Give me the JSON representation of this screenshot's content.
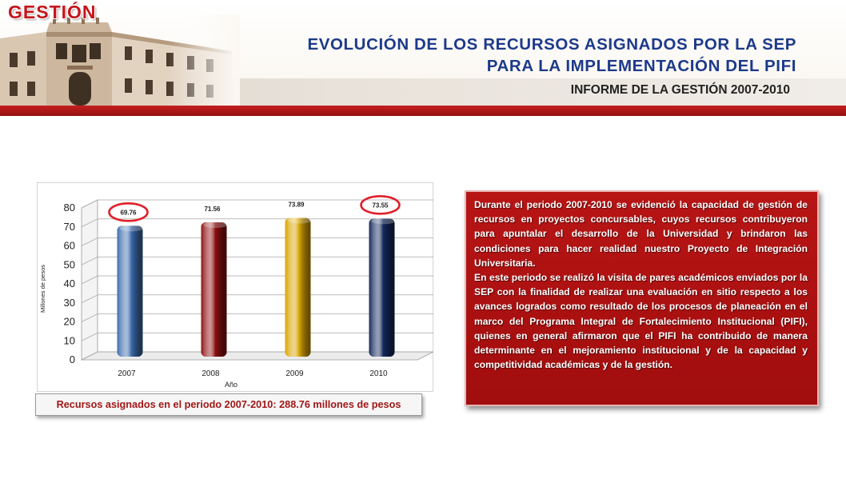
{
  "header": {
    "section": "GESTIÓN",
    "title_line1": "EVOLUCIÓN DE LOS RECURSOS ASIGNADOS POR LA SEP",
    "title_line2": "PARA LA IMPLEMENTACIÓN DEL PIFI",
    "subtitle": "INFORME DE LA GESTIÓN 2007-2010"
  },
  "chart_data": {
    "type": "bar",
    "categories": [
      "2007",
      "2008",
      "2009",
      "2010"
    ],
    "values": [
      69.76,
      71.56,
      73.89,
      73.55
    ],
    "value_labels": [
      "69.76",
      "71.56",
      "73.89",
      "73.55"
    ],
    "colors": [
      "#3d6cae",
      "#8e1010",
      "#d7a400",
      "#142a5c"
    ],
    "highlighted": [
      "2007",
      "2010"
    ],
    "highlight_color": "#e0202a",
    "xlabel": "Año",
    "ylabel": "Millones de pesos",
    "ylim": [
      0,
      80
    ],
    "yticks": [
      0,
      10,
      20,
      30,
      40,
      50,
      60,
      70,
      80
    ],
    "grid": true,
    "legend": "none"
  },
  "caption": "Recursos asignados en el periodo 2007-2010: 288.76 millones de pesos",
  "description": {
    "paragraph1": "Durante el periodo 2007-2010 se evidenció la capacidad de gestión de recursos en proyectos concursables, cuyos recursos contribuyeron para apuntalar el desarrollo de la Universidad y brindaron  las condiciones para hacer realidad nuestro Proyecto de Integración Universitaria.",
    "paragraph2": "En este periodo se realizó la visita de pares académicos enviados por la SEP con la finalidad de realizar una evaluación en sitio respecto a los avances logrados como resultado de los procesos de planeación en el marco del Programa Integral de Fortalecimiento Institucional (PIFI), quienes en general afirmaron que el PIFI ha contribuido de manera determinante en el mejoramiento institucional y de la capacidad y competitividad académicas y de la gestión."
  }
}
